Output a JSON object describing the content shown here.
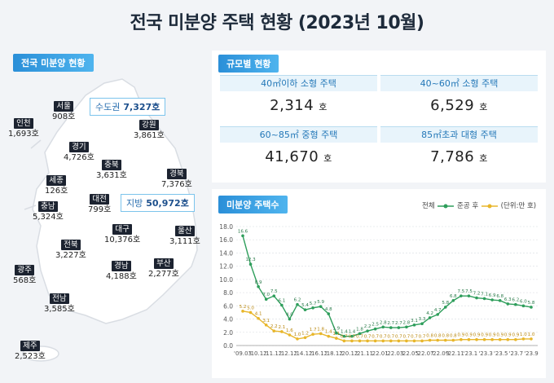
{
  "title": "전국 미분양 주택 현황 (2023년 10월)",
  "map": {
    "tag": "전국 미분양 현황",
    "metro_callout": {
      "label": "수도권",
      "value": "7,327호"
    },
    "local_callout": {
      "label": "지방",
      "value": "50,972호"
    },
    "regions": [
      {
        "name": "인천",
        "value": "1,693호"
      },
      {
        "name": "서울",
        "value": "908호"
      },
      {
        "name": "강원",
        "value": "3,861호"
      },
      {
        "name": "경기",
        "value": "4,726호"
      },
      {
        "name": "충북",
        "value": "3,631호"
      },
      {
        "name": "경북",
        "value": "7,376호"
      },
      {
        "name": "세종",
        "value": "126호"
      },
      {
        "name": "대전",
        "value": "799호"
      },
      {
        "name": "충남",
        "value": "5,324호"
      },
      {
        "name": "대구",
        "value": "10,376호"
      },
      {
        "name": "울산",
        "value": "3,111호"
      },
      {
        "name": "전북",
        "value": "3,227호"
      },
      {
        "name": "경남",
        "value": "4,188호"
      },
      {
        "name": "부산",
        "value": "2,277호"
      },
      {
        "name": "광주",
        "value": "568호"
      },
      {
        "name": "전남",
        "value": "3,585호"
      },
      {
        "name": "제주",
        "value": "2,523호"
      }
    ]
  },
  "scale": {
    "tag": "규모별 현황",
    "unit": "호",
    "items": [
      {
        "label": "40㎡이하 소형 주택",
        "value": "2,314"
      },
      {
        "label": "40~60㎡ 소형 주택",
        "value": "6,529"
      },
      {
        "label": "60~85㎡ 중형 주택",
        "value": "41,670"
      },
      {
        "label": "85㎡초과 대형 주택",
        "value": "7,786"
      }
    ]
  },
  "chart_panel": {
    "tag": "미분양 주택수",
    "legend_total": "전체",
    "legend_completed": "준공 후",
    "unit_note": "(단위:만 호)"
  },
  "colors": {
    "total": "#2e9e5b",
    "completed": "#e8b62a",
    "accent": "#2a8fd8"
  },
  "chart_data": {
    "type": "line",
    "ylim": [
      0,
      18
    ],
    "yticks": [
      "0.0",
      "2.0",
      "4.0",
      "6.0",
      "8.0",
      "10.0",
      "12.0",
      "14.0",
      "16.0",
      "18.0"
    ],
    "xticks": [
      "'09.03",
      "'10.12",
      "'11.12",
      "'12.12",
      "'14.12",
      "'16.12",
      "'18.12",
      "'20.12",
      "'21.11",
      "'22.01",
      "'22.03",
      "'22.05",
      "'22.07",
      "'22.09",
      "'22.11",
      "'23.1",
      "'23.3",
      "'23.5",
      "'23.7",
      "'23.9"
    ],
    "series": [
      {
        "name": "전체",
        "values": [
          16.6,
          12.3,
          8.9,
          7.0,
          7.5,
          6.1,
          4.0,
          6.2,
          5.4,
          5.7,
          5.9,
          4.8,
          1.9,
          1.4,
          1.4,
          1.8,
          2.2,
          2.5,
          2.8,
          2.7,
          2.7,
          2.8,
          3.1,
          3.3,
          4.2,
          4.7,
          5.8,
          6.8,
          7.5,
          7.5,
          7.2,
          7.1,
          6.9,
          6.8,
          6.3,
          6.2,
          6.0,
          5.8
        ],
        "labels": [
          "16.6",
          "12.3",
          "8.9",
          "7.0",
          "7.5",
          "6.1",
          "4.0",
          "6.2",
          "5.4",
          "5.7",
          "5.9",
          "4.8",
          "1.9",
          "1.4",
          "1.4",
          "1.8",
          "2.2",
          "2.5",
          "2.8",
          "2.7",
          "2.7",
          "2.8",
          "3.1",
          "3.3",
          "4.2",
          "4.7",
          "5.8",
          "6.8",
          "7.5",
          "7.5",
          "7.2",
          "7.1",
          "6.9",
          "6.8",
          "6.3",
          "6.2",
          "6.0",
          "5.8"
        ]
      },
      {
        "name": "준공 후",
        "values": [
          5.2,
          5.0,
          4.1,
          3.1,
          2.2,
          2.1,
          1.6,
          1.0,
          1.2,
          1.7,
          1.8,
          1.4,
          1.1,
          0.7,
          0.7,
          0.7,
          0.7,
          0.7,
          0.7,
          0.7,
          0.7,
          0.7,
          0.7,
          0.7,
          0.8,
          0.8,
          0.8,
          0.8,
          0.9,
          0.9,
          0.9,
          0.9,
          0.9,
          0.9,
          0.9,
          0.9,
          1.0,
          1.0
        ],
        "labels": [
          "5.2",
          "5.0",
          "4.1",
          "3.1",
          "2.2",
          "2.1",
          "1.6",
          "1.0",
          "1.2",
          "1.7",
          "1.8",
          "1.4",
          "1.1",
          "0.7",
          "0.7",
          "0.7",
          "0.7",
          "0.7",
          "0.7",
          "0.7",
          "0.7",
          "0.7",
          "0.7",
          "0.7",
          "0.8",
          "0.8",
          "0.8",
          "0.8",
          "0.9",
          "0.9",
          "0.9",
          "0.9",
          "0.9",
          "0.9",
          "0.9",
          "0.9",
          "1.0",
          "1.0"
        ]
      }
    ]
  }
}
